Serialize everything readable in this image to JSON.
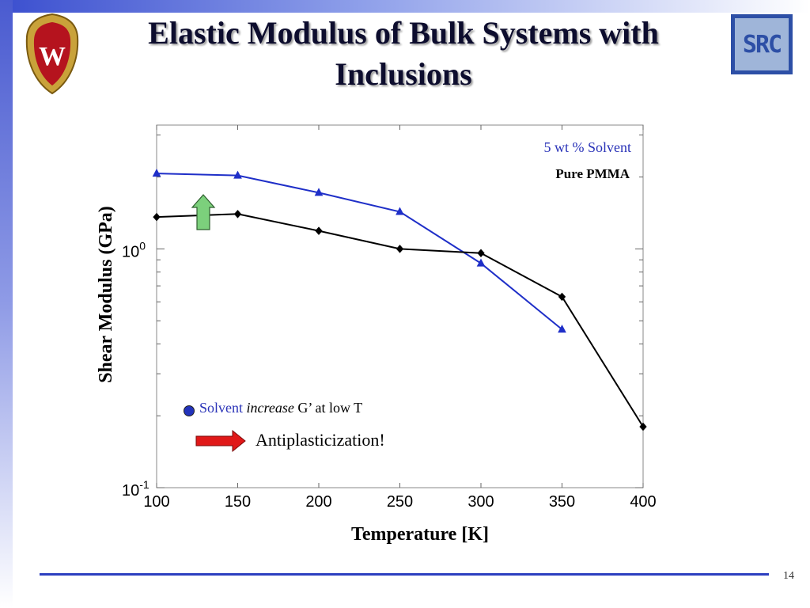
{
  "slide": {
    "title": "Elastic Modulus of Bulk Systems with Inclusions",
    "page_number": "14",
    "logo_right_text": "SRC",
    "logo_left_letter": "W"
  },
  "annotations": {
    "bullet_word": "Solvent",
    "bullet_italic": "increase",
    "bullet_rest": "G’ at low T",
    "arrow_text": "Antiplasticization!"
  },
  "colors": {
    "solvent_series": "#1f2fc8",
    "pmma_series": "#000000",
    "green_arrow": "#7cd07c",
    "red_arrow": "#e01818",
    "title_text": "#0d0d2e"
  },
  "chart_data": {
    "type": "line",
    "xlabel": "Temperature [K]",
    "ylabel": "Shear Modulus (GPa)",
    "xlim": [
      100,
      400
    ],
    "ylim": [
      0.1,
      3.3
    ],
    "y_scale": "log",
    "x_ticks": [
      "100",
      "150",
      "200",
      "250",
      "300",
      "350",
      "400"
    ],
    "y_ticks": [
      {
        "base": "10",
        "exp": "0",
        "value": 1
      },
      {
        "base": "10",
        "exp": "-1",
        "value": 0.1
      }
    ],
    "legend_position": "top-right",
    "series": [
      {
        "name": "5 wt % Solvent",
        "marker": "triangle",
        "x": [
          100,
          150,
          200,
          250,
          300,
          350
        ],
        "y": [
          2.07,
          2.03,
          1.72,
          1.43,
          0.87,
          0.46
        ]
      },
      {
        "name": "Pure PMMA",
        "marker": "diamond",
        "x": [
          100,
          150,
          200,
          250,
          300,
          350,
          400
        ],
        "y": [
          1.36,
          1.4,
          1.19,
          1.0,
          0.96,
          0.63,
          0.18
        ]
      }
    ]
  }
}
